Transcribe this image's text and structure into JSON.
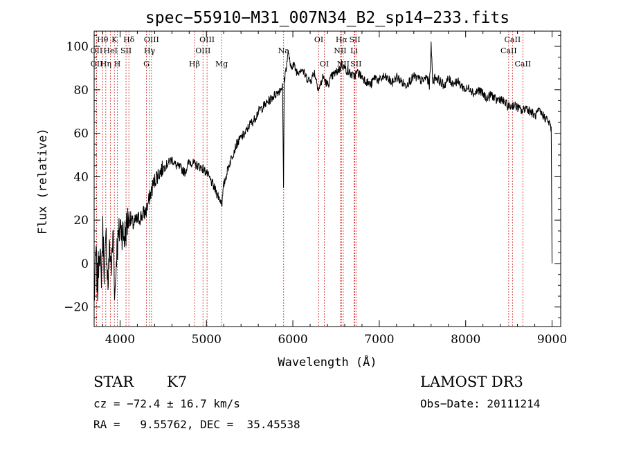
{
  "chart_data": {
    "type": "line",
    "title": "spec−55910−M31_007N34_B2_sp14−233.fits",
    "xlabel": "Wavelength (Å)",
    "ylabel": "Flux (relative)",
    "xlim": [
      3700,
      9100
    ],
    "ylim": [
      -29,
      107
    ],
    "xticks": [
      4000,
      5000,
      6000,
      7000,
      8000,
      9000
    ],
    "yticks": [
      -20,
      0,
      20,
      40,
      60,
      80,
      100
    ],
    "grid": false,
    "series": [
      {
        "x": [
          3700,
          3720,
          3740,
          3760,
          3780,
          3800,
          3820,
          3840,
          3860,
          3880,
          3900,
          3920,
          3940,
          3960,
          3980,
          4000,
          4050,
          4100,
          4150,
          4200,
          4250,
          4300,
          4340,
          4380,
          4420,
          4460,
          4500,
          4550,
          4600,
          4650,
          4700,
          4750,
          4800,
          4850,
          4900,
          4950,
          5000,
          5050,
          5100,
          5150,
          5180,
          5200,
          5250,
          5300,
          5350,
          5400,
          5450,
          5500,
          5550,
          5600,
          5650,
          5700,
          5750,
          5800,
          5850,
          5880,
          5892,
          5900,
          5950,
          5970,
          6000,
          6050,
          6100,
          6150,
          6200,
          6250,
          6300,
          6350,
          6400,
          6450,
          6500,
          6550,
          6563,
          6600,
          6650,
          6700,
          6750,
          6800,
          6850,
          6900,
          6950,
          7000,
          7050,
          7100,
          7150,
          7200,
          7250,
          7300,
          7350,
          7400,
          7450,
          7500,
          7550,
          7580,
          7600,
          7620,
          7650,
          7700,
          7750,
          7800,
          7850,
          7900,
          7950,
          8000,
          8050,
          8100,
          8150,
          8200,
          8250,
          8300,
          8350,
          8400,
          8450,
          8500,
          8550,
          8600,
          8650,
          8700,
          8750,
          8800,
          8850,
          8900,
          8950,
          8990,
          9000
        ],
        "y": [
          -18,
          5,
          -12,
          10,
          -8,
          15,
          -5,
          12,
          -10,
          8,
          -2,
          14,
          -15,
          6,
          10,
          18,
          12,
          22,
          18,
          20,
          22,
          24,
          30,
          36,
          40,
          42,
          44,
          46,
          48,
          45,
          44,
          42,
          47,
          46,
          45,
          44,
          42,
          38,
          34,
          30,
          28,
          36,
          44,
          50,
          55,
          58,
          60,
          64,
          66,
          70,
          72,
          74,
          76,
          78,
          80,
          82,
          35,
          84,
          98,
          90,
          92,
          88,
          90,
          86,
          84,
          88,
          80,
          86,
          82,
          86,
          88,
          90,
          92,
          90,
          88,
          86,
          88,
          86,
          84,
          82,
          86,
          84,
          86,
          85,
          83,
          86,
          84,
          82,
          84,
          86,
          85,
          84,
          86,
          82,
          100,
          84,
          86,
          84,
          82,
          85,
          83,
          84,
          82,
          80,
          81,
          78,
          80,
          78,
          76,
          78,
          75,
          76,
          74,
          72,
          73,
          72,
          70,
          72,
          70,
          68,
          70,
          68,
          66,
          62,
          0
        ]
      }
    ],
    "line_markers": [
      {
        "label": "Hθ",
        "x": 3798,
        "row": 0
      },
      {
        "label": "OII",
        "x": 3727,
        "row": 1
      },
      {
        "label": "OII",
        "x": 3729,
        "row": 2
      },
      {
        "label": "K",
        "x": 3934,
        "row": 0
      },
      {
        "label": "HeI",
        "x": 3889,
        "row": 1
      },
      {
        "label": "Hη",
        "x": 3835,
        "row": 2
      },
      {
        "label": "Hδ",
        "x": 4102,
        "row": 0
      },
      {
        "label": "SII",
        "x": 4069,
        "row": 1
      },
      {
        "label": "H",
        "x": 3969,
        "row": 2
      },
      {
        "label": "OIII",
        "x": 4364,
        "row": 0
      },
      {
        "label": "Hγ",
        "x": 4341,
        "row": 1
      },
      {
        "label": "G",
        "x": 4305,
        "row": 2
      },
      {
        "label": "OIII",
        "x": 5007,
        "row": 0
      },
      {
        "label": "OIII",
        "x": 4960,
        "row": 1
      },
      {
        "label": "Hβ",
        "x": 4861,
        "row": 2
      },
      {
        "label": "Mg",
        "x": 5175,
        "row": 2
      },
      {
        "label": "Na",
        "x": 5893,
        "row": 1
      },
      {
        "label": "OI",
        "x": 6300,
        "row": 0
      },
      {
        "label": "OI",
        "x": 6364,
        "row": 2
      },
      {
        "label": "Hα",
        "x": 6563,
        "row": 0
      },
      {
        "label": "NII",
        "x": 6548,
        "row": 1
      },
      {
        "label": "NII",
        "x": 6583,
        "row": 2
      },
      {
        "label": "SII",
        "x": 6717,
        "row": 0
      },
      {
        "label": "Li",
        "x": 6708,
        "row": 1
      },
      {
        "label": "SII",
        "x": 6731,
        "row": 2
      },
      {
        "label": "CaII",
        "x": 8542,
        "row": 0
      },
      {
        "label": "CaII",
        "x": 8498,
        "row": 1
      },
      {
        "label": "CaII",
        "x": 8662,
        "row": 2
      }
    ]
  },
  "info": {
    "class": "STAR",
    "subclass": "K7",
    "survey": "LAMOST DR3",
    "cz": "cz = −72.4 ± 16.7 km/s",
    "obs_date": "Obs−Date: 20111214",
    "coords": "RA =   9.55762, DEC =  35.45538"
  }
}
